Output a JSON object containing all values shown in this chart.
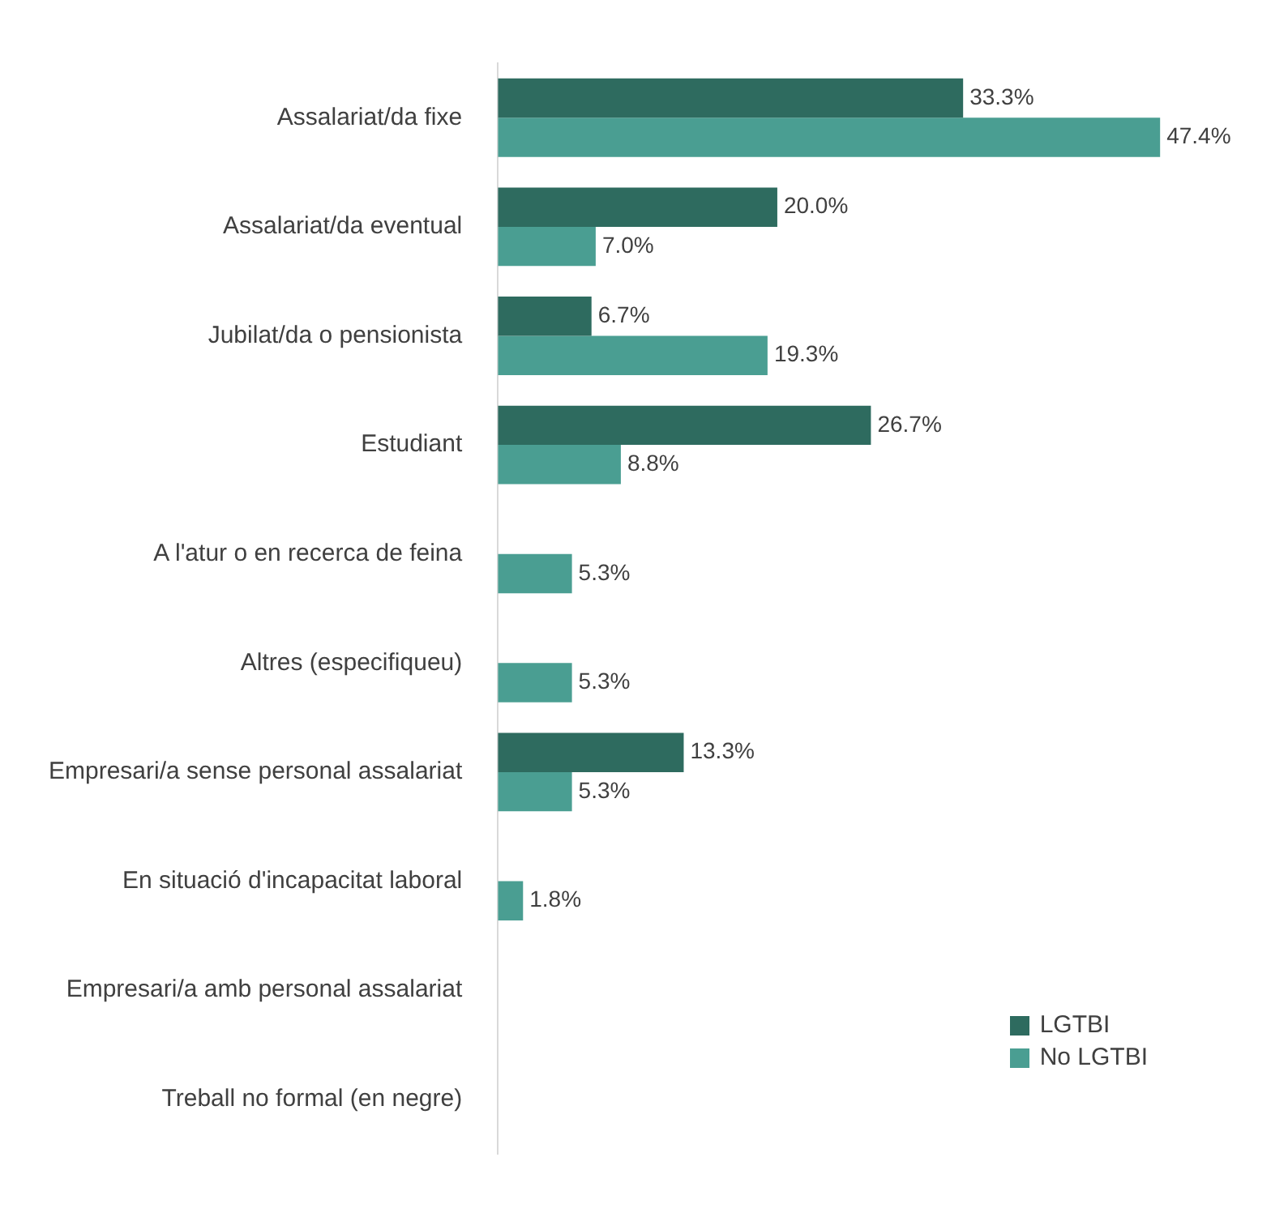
{
  "chart_data": {
    "type": "bar",
    "orientation": "horizontal",
    "categories": [
      "Assalariat/da fixe",
      "Assalariat/da eventual",
      "Jubilat/da o pensionista",
      "Estudiant",
      "A l'atur o en recerca de feina",
      "Altres (especifiqueu)",
      "Empresari/a sense personal assalariat",
      "En situació d'incapacitat laboral",
      "Empresari/a amb personal assalariat",
      "Treball no formal (en negre)"
    ],
    "series": [
      {
        "name": "LGTBI",
        "color": "#2e6b5f",
        "values": [
          33.3,
          20.0,
          6.7,
          26.7,
          null,
          null,
          13.3,
          null,
          null,
          null
        ],
        "value_labels": [
          "33.3%",
          "20.0%",
          "6.7%",
          "26.7%",
          null,
          null,
          "13.3%",
          null,
          null,
          null
        ]
      },
      {
        "name": "No LGTBI",
        "color": "#4a9e92",
        "values": [
          47.4,
          7.0,
          19.3,
          8.8,
          5.3,
          5.3,
          5.3,
          1.8,
          null,
          null
        ],
        "value_labels": [
          "47.4%",
          "7.0%",
          "19.3%",
          "8.8%",
          "5.3%",
          "5.3%",
          "5.3%",
          "1.8%",
          null,
          null
        ]
      }
    ],
    "grid": false,
    "legend": "bottom right"
  }
}
